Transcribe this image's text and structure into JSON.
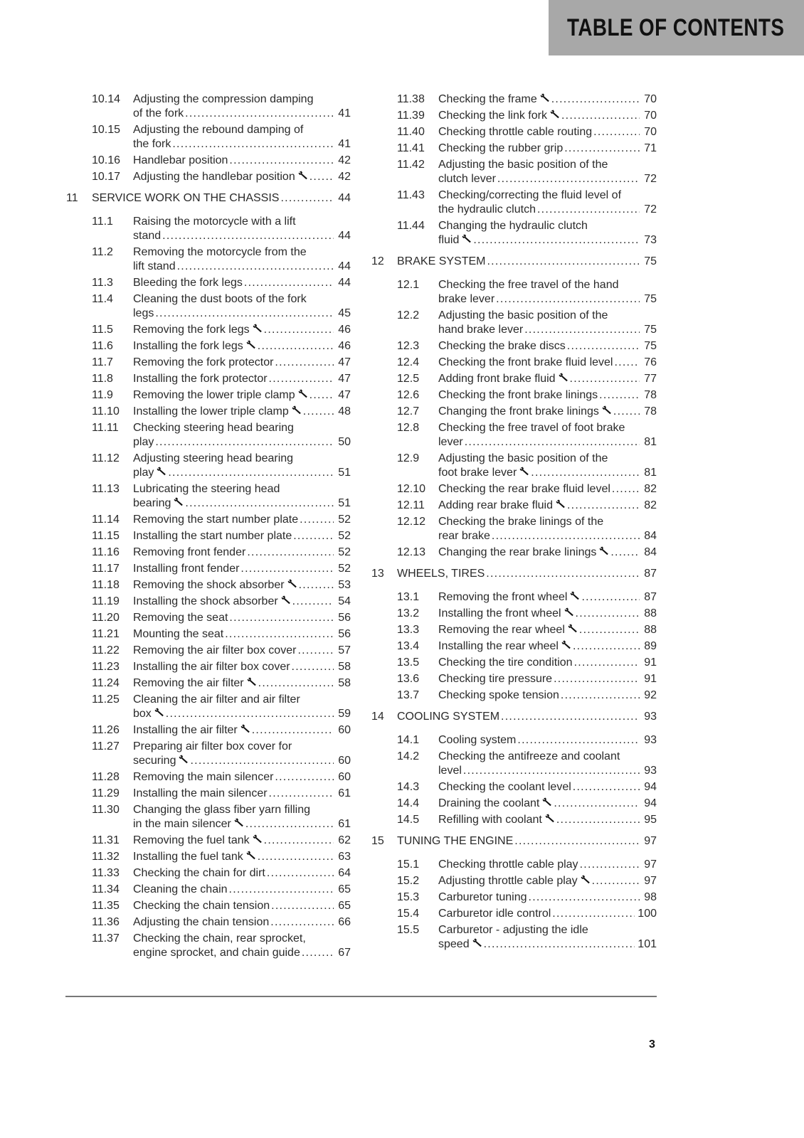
{
  "header": {
    "title": "TABLE OF CONTENTS",
    "background": "#a8a8a8"
  },
  "icons": {
    "wrench": "wrench-icon"
  },
  "columns": [
    {
      "items": [
        {
          "num": "10.14",
          "lines": [
            "Adjusting the compression damping",
            "of the fork"
          ],
          "page": "41"
        },
        {
          "num": "10.15",
          "lines": [
            "Adjusting the rebound damping of",
            "the fork"
          ],
          "page": "41"
        },
        {
          "num": "10.16",
          "lines": [
            "Handlebar position"
          ],
          "page": "42"
        },
        {
          "num": "10.17",
          "lines": [
            "Adjusting the handlebar position"
          ],
          "page": "42",
          "wrench": true
        },
        {
          "chapter": true,
          "num": "11",
          "lines": [
            "SERVICE WORK ON THE CHASSIS"
          ],
          "page": "44"
        },
        {
          "num": "11.1",
          "lines": [
            "Raising the motorcycle with a lift",
            "stand"
          ],
          "page": "44"
        },
        {
          "num": "11.2",
          "lines": [
            "Removing the motorcycle from the",
            "lift stand"
          ],
          "page": "44"
        },
        {
          "num": "11.3",
          "lines": [
            "Bleeding the fork legs"
          ],
          "page": "44"
        },
        {
          "num": "11.4",
          "lines": [
            "Cleaning the dust boots of the fork",
            "legs"
          ],
          "page": "45"
        },
        {
          "num": "11.5",
          "lines": [
            "Removing the fork legs"
          ],
          "page": "46",
          "wrench": true
        },
        {
          "num": "11.6",
          "lines": [
            "Installing the fork legs"
          ],
          "page": "46",
          "wrench": true
        },
        {
          "num": "11.7",
          "lines": [
            "Removing the fork protector"
          ],
          "page": "47"
        },
        {
          "num": "11.8",
          "lines": [
            "Installing the fork protector"
          ],
          "page": "47"
        },
        {
          "num": "11.9",
          "lines": [
            "Removing the lower triple clamp"
          ],
          "page": "47",
          "wrench": true
        },
        {
          "num": "11.10",
          "lines": [
            "Installing the lower triple clamp"
          ],
          "page": "48",
          "wrench": true
        },
        {
          "num": "11.11",
          "lines": [
            "Checking steering head bearing",
            "play"
          ],
          "page": "50"
        },
        {
          "num": "11.12",
          "lines": [
            "Adjusting steering head bearing",
            "play"
          ],
          "page": "51",
          "wrench": true
        },
        {
          "num": "11.13",
          "lines": [
            "Lubricating the steering head",
            "bearing"
          ],
          "page": "51",
          "wrench": true
        },
        {
          "num": "11.14",
          "lines": [
            "Removing the start number plate"
          ],
          "page": "52"
        },
        {
          "num": "11.15",
          "lines": [
            "Installing the start number plate"
          ],
          "page": "52"
        },
        {
          "num": "11.16",
          "lines": [
            "Removing front fender"
          ],
          "page": "52"
        },
        {
          "num": "11.17",
          "lines": [
            "Installing front fender"
          ],
          "page": "52"
        },
        {
          "num": "11.18",
          "lines": [
            "Removing the shock absorber"
          ],
          "page": "53",
          "wrench": true
        },
        {
          "num": "11.19",
          "lines": [
            "Installing the shock absorber"
          ],
          "page": "54",
          "wrench": true
        },
        {
          "num": "11.20",
          "lines": [
            "Removing the seat"
          ],
          "page": "56"
        },
        {
          "num": "11.21",
          "lines": [
            "Mounting the seat"
          ],
          "page": "56"
        },
        {
          "num": "11.22",
          "lines": [
            "Removing the air filter box cover"
          ],
          "page": "57"
        },
        {
          "num": "11.23",
          "lines": [
            "Installing the air filter box cover"
          ],
          "page": "58"
        },
        {
          "num": "11.24",
          "lines": [
            "Removing the air filter"
          ],
          "page": "58",
          "wrench": true
        },
        {
          "num": "11.25",
          "lines": [
            "Cleaning the air filter and air filter",
            "box"
          ],
          "page": "59",
          "wrench": true
        },
        {
          "num": "11.26",
          "lines": [
            "Installing the air filter"
          ],
          "page": "60",
          "wrench": true
        },
        {
          "num": "11.27",
          "lines": [
            "Preparing air filter box cover for",
            "securing"
          ],
          "page": "60",
          "wrench": true
        },
        {
          "num": "11.28",
          "lines": [
            "Removing the main silencer"
          ],
          "page": "60"
        },
        {
          "num": "11.29",
          "lines": [
            "Installing the main silencer"
          ],
          "page": "61"
        },
        {
          "num": "11.30",
          "lines": [
            "Changing the glass fiber yarn filling",
            "in the main silencer"
          ],
          "page": "61",
          "wrench": true
        },
        {
          "num": "11.31",
          "lines": [
            "Removing the fuel tank"
          ],
          "page": "62",
          "wrench": true
        },
        {
          "num": "11.32",
          "lines": [
            "Installing the fuel tank"
          ],
          "page": "63",
          "wrench": true
        },
        {
          "num": "11.33",
          "lines": [
            "Checking the chain for dirt"
          ],
          "page": "64"
        },
        {
          "num": "11.34",
          "lines": [
            "Cleaning the chain"
          ],
          "page": "65"
        },
        {
          "num": "11.35",
          "lines": [
            "Checking the chain tension"
          ],
          "page": "65"
        },
        {
          "num": "11.36",
          "lines": [
            "Adjusting the chain tension"
          ],
          "page": "66"
        },
        {
          "num": "11.37",
          "lines": [
            "Checking the chain, rear sprocket,",
            "engine sprocket, and chain guide"
          ],
          "page": "67"
        }
      ]
    },
    {
      "items": [
        {
          "num": "11.38",
          "lines": [
            "Checking the frame"
          ],
          "page": "70",
          "wrench": true
        },
        {
          "num": "11.39",
          "lines": [
            "Checking the link fork"
          ],
          "page": "70",
          "wrench": true
        },
        {
          "num": "11.40",
          "lines": [
            "Checking throttle cable routing"
          ],
          "page": "70"
        },
        {
          "num": "11.41",
          "lines": [
            "Checking the rubber grip"
          ],
          "page": "71"
        },
        {
          "num": "11.42",
          "lines": [
            "Adjusting the basic position of the",
            "clutch lever"
          ],
          "page": "72"
        },
        {
          "num": "11.43",
          "lines": [
            "Checking/correcting the fluid level of",
            "the hydraulic clutch"
          ],
          "page": "72"
        },
        {
          "num": "11.44",
          "lines": [
            "Changing the hydraulic clutch",
            "fluid"
          ],
          "page": "73",
          "wrench": true
        },
        {
          "chapter": true,
          "num": "12",
          "lines": [
            "BRAKE SYSTEM"
          ],
          "page": "75"
        },
        {
          "num": "12.1",
          "lines": [
            "Checking the free travel of the hand",
            "brake lever"
          ],
          "page": "75"
        },
        {
          "num": "12.2",
          "lines": [
            "Adjusting the basic position of the",
            "hand brake lever"
          ],
          "page": "75"
        },
        {
          "num": "12.3",
          "lines": [
            "Checking the brake discs"
          ],
          "page": "75"
        },
        {
          "num": "12.4",
          "lines": [
            "Checking the front brake fluid level"
          ],
          "page": "76"
        },
        {
          "num": "12.5",
          "lines": [
            "Adding front brake fluid"
          ],
          "page": "77",
          "wrench": true
        },
        {
          "num": "12.6",
          "lines": [
            "Checking the front brake linings"
          ],
          "page": "78"
        },
        {
          "num": "12.7",
          "lines": [
            "Changing the front brake linings"
          ],
          "page": "78",
          "wrench": true
        },
        {
          "num": "12.8",
          "lines": [
            "Checking the free travel of foot brake",
            "lever"
          ],
          "page": "81"
        },
        {
          "num": "12.9",
          "lines": [
            "Adjusting the basic position of the",
            "foot brake lever"
          ],
          "page": "81",
          "wrench": true
        },
        {
          "num": "12.10",
          "lines": [
            "Checking the rear brake fluid level"
          ],
          "page": "82"
        },
        {
          "num": "12.11",
          "lines": [
            "Adding rear brake fluid"
          ],
          "page": "82",
          "wrench": true
        },
        {
          "num": "12.12",
          "lines": [
            "Checking the brake linings of the",
            "rear brake"
          ],
          "page": "84"
        },
        {
          "num": "12.13",
          "lines": [
            "Changing the rear brake linings"
          ],
          "page": "84",
          "wrench": true
        },
        {
          "chapter": true,
          "num": "13",
          "lines": [
            "WHEELS, TIRES"
          ],
          "page": "87"
        },
        {
          "num": "13.1",
          "lines": [
            "Removing the front wheel"
          ],
          "page": "87",
          "wrench": true
        },
        {
          "num": "13.2",
          "lines": [
            "Installing the front wheel"
          ],
          "page": "88",
          "wrench": true
        },
        {
          "num": "13.3",
          "lines": [
            "Removing the rear wheel"
          ],
          "page": "88",
          "wrench": true
        },
        {
          "num": "13.4",
          "lines": [
            "Installing the rear wheel"
          ],
          "page": "89",
          "wrench": true
        },
        {
          "num": "13.5",
          "lines": [
            "Checking the tire condition"
          ],
          "page": "91"
        },
        {
          "num": "13.6",
          "lines": [
            "Checking tire pressure"
          ],
          "page": "91"
        },
        {
          "num": "13.7",
          "lines": [
            "Checking spoke tension"
          ],
          "page": "92"
        },
        {
          "chapter": true,
          "num": "14",
          "lines": [
            "COOLING SYSTEM"
          ],
          "page": "93"
        },
        {
          "num": "14.1",
          "lines": [
            "Cooling system"
          ],
          "page": "93"
        },
        {
          "num": "14.2",
          "lines": [
            "Checking the antifreeze and coolant",
            "level"
          ],
          "page": "93"
        },
        {
          "num": "14.3",
          "lines": [
            "Checking the coolant level"
          ],
          "page": "94"
        },
        {
          "num": "14.4",
          "lines": [
            "Draining the coolant"
          ],
          "page": "94",
          "wrench": true
        },
        {
          "num": "14.5",
          "lines": [
            "Refilling with coolant"
          ],
          "page": "95",
          "wrench": true
        },
        {
          "chapter": true,
          "num": "15",
          "lines": [
            "TUNING THE ENGINE"
          ],
          "page": "97"
        },
        {
          "num": "15.1",
          "lines": [
            "Checking throttle cable play"
          ],
          "page": "97"
        },
        {
          "num": "15.2",
          "lines": [
            "Adjusting throttle cable play"
          ],
          "page": "97",
          "wrench": true
        },
        {
          "num": "15.3",
          "lines": [
            "Carburetor tuning"
          ],
          "page": "98"
        },
        {
          "num": "15.4",
          "lines": [
            "Carburetor idle control"
          ],
          "page": "100"
        },
        {
          "num": "15.5",
          "lines": [
            "Carburetor - adjusting the idle",
            "speed"
          ],
          "page": "101",
          "wrench": true
        }
      ]
    }
  ],
  "footer": {
    "page_number": "3"
  }
}
